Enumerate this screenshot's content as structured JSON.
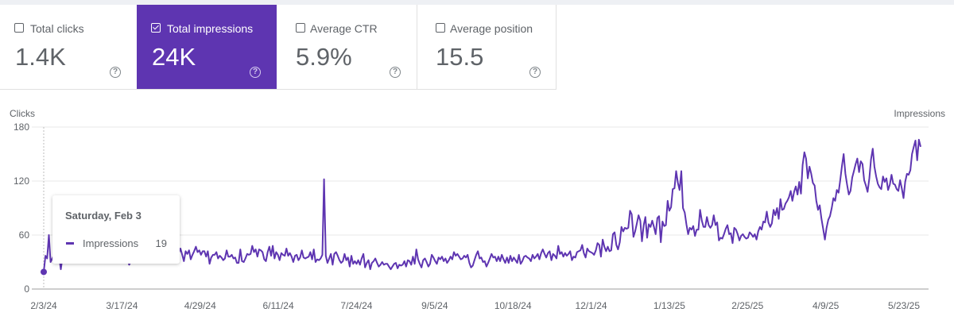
{
  "metrics": [
    {
      "label": "Total clicks",
      "value": "1.4K",
      "checked": false
    },
    {
      "label": "Total impressions",
      "value": "24K",
      "checked": true
    },
    {
      "label": "Average CTR",
      "value": "5.9%",
      "checked": false
    },
    {
      "label": "Average position",
      "value": "15.5",
      "checked": false
    }
  ],
  "icons": {
    "help": "help-circle-icon",
    "checkbox": "checkbox-icon"
  },
  "colors": {
    "accent": "#5e35b1",
    "line": "#5e35b1",
    "grid": "#e8e8e8",
    "text": "#5f6368"
  },
  "tooltip": {
    "date": "Saturday, Feb 3",
    "series": "Impressions",
    "value": "19"
  },
  "chart_data": {
    "type": "line",
    "title": "",
    "ylabel_left": "Clicks",
    "ylabel_right": "Impressions",
    "ylim": [
      0,
      180
    ],
    "yticks": [
      "0",
      "60",
      "120",
      "180"
    ],
    "xlabels": [
      "2/3/24",
      "3/17/24",
      "4/29/24",
      "6/11/24",
      "7/24/24",
      "9/5/24",
      "10/18/24",
      "12/1/24",
      "1/13/25",
      "2/25/25",
      "4/9/25",
      "5/23/25"
    ],
    "series": [
      {
        "name": "Impressions",
        "values": [
          19,
          37,
          34,
          60,
          30,
          34,
          38,
          33,
          35,
          36,
          22,
          36,
          38,
          35,
          37,
          34,
          33,
          37,
          31,
          33,
          34,
          36,
          33,
          36,
          37,
          34,
          37,
          35,
          37,
          33,
          33,
          32,
          34,
          32,
          32,
          41,
          36,
          37,
          34,
          31,
          31,
          31,
          40,
          36,
          37,
          38,
          40,
          45,
          36,
          32,
          27,
          31,
          32,
          39,
          31,
          34,
          36,
          36,
          37,
          38,
          41,
          47,
          42,
          34,
          38,
          40,
          38,
          41,
          51,
          34,
          36,
          39,
          40,
          39,
          40,
          35,
          30,
          33,
          40,
          40,
          45,
          38,
          31,
          42,
          39,
          43,
          33,
          38,
          42,
          47,
          41,
          43,
          38,
          42,
          42,
          36,
          42,
          28,
          35,
          38,
          38,
          41,
          34,
          37,
          35,
          32,
          34,
          43,
          36,
          36,
          38,
          34,
          35,
          29,
          29,
          44,
          31,
          30,
          34,
          39,
          38,
          39,
          48,
          41,
          44,
          36,
          44,
          43,
          41,
          33,
          31,
          41,
          47,
          37,
          48,
          34,
          41,
          38,
          32,
          40,
          38,
          37,
          45,
          37,
          40,
          36,
          30,
          37,
          38,
          32,
          35,
          43,
          35,
          34,
          35,
          36,
          41,
          33,
          44,
          30,
          33,
          32,
          34,
          38,
          122,
          37,
          29,
          34,
          39,
          27,
          39,
          41,
          37,
          32,
          29,
          31,
          39,
          32,
          35,
          25,
          37,
          28,
          31,
          28,
          32,
          27,
          34,
          39,
          24,
          29,
          32,
          22,
          29,
          31,
          34,
          29,
          25,
          27,
          30,
          27,
          28,
          28,
          25,
          22,
          25,
          28,
          29,
          23,
          27,
          26,
          27,
          31,
          25,
          32,
          31,
          27,
          36,
          28,
          44,
          33,
          28,
          24,
          32,
          34,
          30,
          25,
          28,
          38,
          35,
          31,
          28,
          35,
          33,
          36,
          31,
          34,
          29,
          32,
          36,
          33,
          41,
          37,
          39,
          36,
          33,
          34,
          37,
          35,
          38,
          29,
          24,
          26,
          32,
          38,
          42,
          34,
          35,
          30,
          31,
          25,
          29,
          34,
          39,
          35,
          36,
          31,
          36,
          31,
          38,
          33,
          29,
          35,
          29,
          37,
          31,
          35,
          32,
          29,
          38,
          28,
          31,
          36,
          37,
          35,
          34,
          31,
          38,
          34,
          36,
          39,
          33,
          40,
          44,
          39,
          35,
          40,
          42,
          32,
          39,
          37,
          34,
          48,
          39,
          41,
          36,
          40,
          37,
          39,
          42,
          32,
          36,
          35,
          41,
          42,
          43,
          49,
          40,
          35,
          45,
          42,
          41,
          40,
          38,
          43,
          51,
          49,
          36,
          55,
          47,
          42,
          47,
          42,
          43,
          61,
          63,
          49,
          44,
          52,
          69,
          64,
          68,
          67,
          68,
          87,
          83,
          58,
          64,
          73,
          82,
          76,
          53,
          71,
          80,
          57,
          72,
          69,
          76,
          69,
          61,
          79,
          81,
          52,
          75,
          70,
          71,
          98,
          87,
          91,
          111,
          112,
          131,
          118,
          110,
          131,
          90,
          85,
          72,
          61,
          68,
          66,
          70,
          59,
          66,
          66,
          88,
          76,
          69,
          69,
          80,
          71,
          68,
          71,
          82,
          71,
          74,
          54,
          57,
          56,
          61,
          67,
          71,
          61,
          62,
          51,
          68,
          66,
          61,
          54,
          59,
          61,
          58,
          56,
          57,
          63,
          61,
          58,
          61,
          55,
          64,
          69,
          66,
          75,
          74,
          86,
          74,
          69,
          73,
          88,
          82,
          90,
          78,
          100,
          88,
          89,
          95,
          98,
          102,
          109,
          98,
          108,
          114,
          105,
          119,
          106,
          138,
          152,
          145,
          123,
          136,
          128,
          118,
          115,
          98,
          88,
          93,
          78,
          67,
          55,
          68,
          77,
          81,
          90,
          101,
          98,
          110,
          107,
          121,
          137,
          150,
          128,
          116,
          105,
          109,
          124,
          131,
          139,
          145,
          130,
          142,
          139,
          121,
          115,
          108,
          123,
          144,
          156,
          136,
          125,
          117,
          113,
          111,
          125,
          119,
          123,
          110,
          116,
          127,
          117,
          116,
          111,
          109,
          121,
          112,
          101,
          119,
          128,
          127,
          132,
          150,
          158,
          165,
          143,
          166,
          158
        ]
      }
    ]
  }
}
